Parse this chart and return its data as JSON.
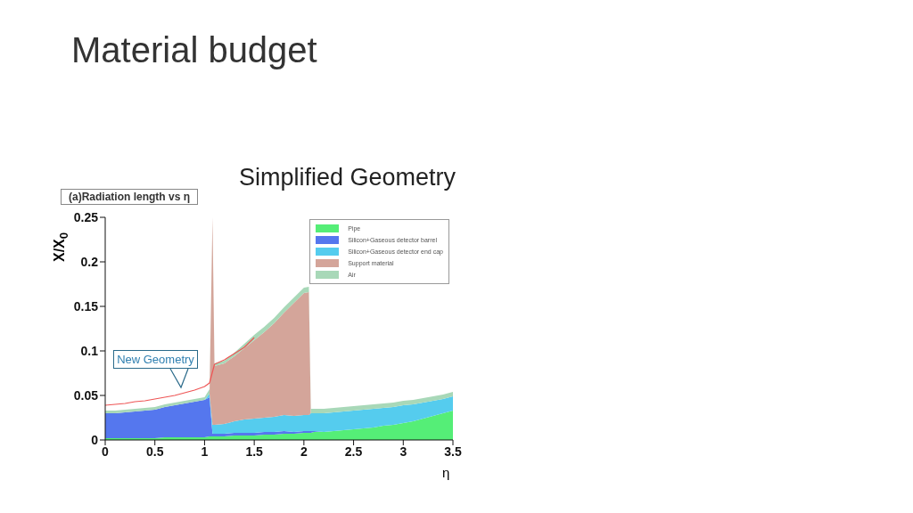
{
  "chart_data": {
    "type": "area",
    "title": "Simplified Geometry",
    "subtitle": "(a)Radiation length vs η",
    "xlabel": "η",
    "ylabel": "X/X$_{0}$",
    "annotations": [
      "Material budget",
      {
        "text": "New Geometry",
        "x": 0.8,
        "y": 0.053
      }
    ],
    "stacked": true,
    "legend": "top right",
    "grid": false,
    "xlim": [
      0,
      3.5
    ],
    "xticks": [
      0,
      0.5,
      1,
      1.5,
      2,
      2.5,
      3,
      3.5
    ],
    "ylim": [
      0,
      0.25
    ],
    "yticks": [
      0,
      0.05,
      0.1,
      0.15,
      0.2,
      0.25
    ],
    "x": [
      0,
      0.1,
      0.2,
      0.3,
      0.4,
      0.5,
      0.6,
      0.7,
      0.8,
      0.9,
      1.0,
      1.05,
      1.08,
      1.1,
      1.2,
      1.3,
      1.4,
      1.5,
      1.6,
      1.7,
      1.8,
      1.9,
      2.0,
      2.05,
      2.07,
      2.1,
      2.2,
      2.3,
      2.4,
      2.5,
      2.6,
      2.7,
      2.8,
      2.9,
      3.0,
      3.1,
      3.2,
      3.3,
      3.4,
      3.5
    ],
    "series": [
      {
        "name": "Pipe",
        "color": "#55ee77",
        "values": [
          0.002,
          0.002,
          0.002,
          0.002,
          0.002,
          0.002,
          0.003,
          0.003,
          0.003,
          0.003,
          0.003,
          0.004,
          0.004,
          0.004,
          0.004,
          0.005,
          0.005,
          0.005,
          0.006,
          0.006,
          0.007,
          0.007,
          0.008,
          0.008,
          0.008,
          0.009,
          0.009,
          0.01,
          0.011,
          0.012,
          0.013,
          0.014,
          0.016,
          0.017,
          0.019,
          0.021,
          0.024,
          0.027,
          0.03,
          0.033
        ]
      },
      {
        "name": "Silicon+Gaseous detector barrel",
        "color": "#5577ee",
        "values": [
          0.028,
          0.028,
          0.029,
          0.03,
          0.031,
          0.032,
          0.034,
          0.036,
          0.038,
          0.04,
          0.042,
          0.044,
          0.003,
          0.003,
          0.003,
          0.003,
          0.003,
          0.003,
          0.003,
          0.003,
          0.003,
          0.002,
          0.002,
          0.002,
          0.002,
          0.001,
          0,
          0,
          0,
          0,
          0,
          0,
          0,
          0,
          0,
          0,
          0,
          0,
          0,
          0
        ]
      },
      {
        "name": "Silicon+Gaseous detector end cap",
        "color": "#55ccee",
        "values": [
          0,
          0,
          0,
          0,
          0,
          0,
          0,
          0,
          0,
          0,
          0,
          0.004,
          0.01,
          0.01,
          0.011,
          0.013,
          0.015,
          0.016,
          0.016,
          0.017,
          0.018,
          0.018,
          0.018,
          0.018,
          0.02,
          0.02,
          0.021,
          0.021,
          0.021,
          0.021,
          0.021,
          0.021,
          0.02,
          0.02,
          0.02,
          0.019,
          0.018,
          0.017,
          0.016,
          0.016
        ]
      },
      {
        "name": "Support material",
        "color": "#d4a59a",
        "values": [
          0,
          0,
          0,
          0,
          0,
          0,
          0,
          0,
          0,
          0,
          0,
          0,
          0.233,
          0.066,
          0.068,
          0.073,
          0.08,
          0.088,
          0.096,
          0.105,
          0.115,
          0.127,
          0.137,
          0.138,
          0,
          0,
          0,
          0,
          0,
          0,
          0,
          0,
          0,
          0,
          0,
          0,
          0,
          0,
          0,
          0
        ]
      },
      {
        "name": "Air",
        "color": "#a8d8b8",
        "values": [
          0.003,
          0.003,
          0.003,
          0.003,
          0.003,
          0.003,
          0.003,
          0.003,
          0.003,
          0.003,
          0.003,
          0.005,
          0,
          0.003,
          0.003,
          0.004,
          0.005,
          0.006,
          0.006,
          0.006,
          0.006,
          0.006,
          0.006,
          0.006,
          0.005,
          0.005,
          0.005,
          0.005,
          0.005,
          0.005,
          0.005,
          0.005,
          0.005,
          0.005,
          0.005,
          0.005,
          0.005,
          0.005,
          0.005,
          0.005
        ]
      },
      {
        "type": "line",
        "color": "#ee5555",
        "x": [
          0,
          0.1,
          0.2,
          0.3,
          0.4,
          0.5,
          0.6,
          0.7,
          0.8,
          0.9,
          1.0,
          1.05,
          1.1,
          1.2,
          1.3,
          1.4,
          1.5
        ],
        "values": [
          0.039,
          0.04,
          0.041,
          0.043,
          0.044,
          0.046,
          0.048,
          0.05,
          0.053,
          0.056,
          0.06,
          0.064,
          0.085,
          0.09,
          0.097,
          0.104,
          0.115
        ]
      }
    ]
  }
}
